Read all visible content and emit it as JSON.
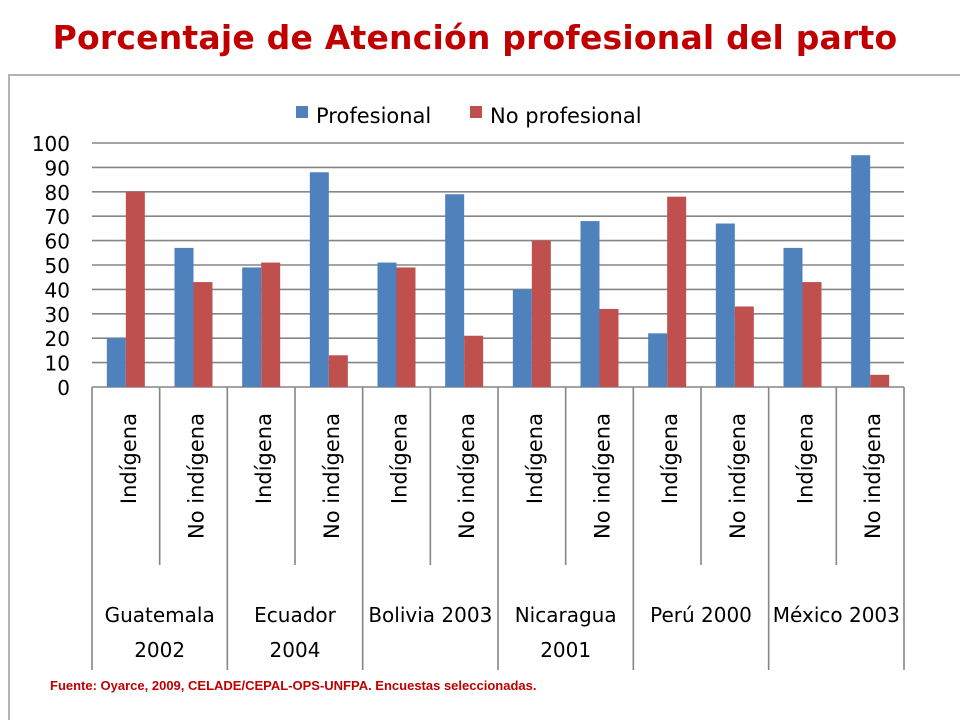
{
  "title": "Porcentaje de Atención profesional del parto",
  "footnote": "Fuente: Oyarce, 2009, CELADE/CEPAL-OPS-UNFPA. Encuestas seleccionadas.",
  "colors": {
    "title": "#c00000",
    "profesional": "#4f81bd",
    "no_profesional": "#c0504d",
    "grid": "#868686"
  },
  "chart_data": {
    "type": "bar",
    "legend_position": "top",
    "grid": true,
    "ylim": [
      0,
      100
    ],
    "yticks": [
      "0",
      "10",
      "20",
      "30",
      "40",
      "50",
      "60",
      "70",
      "80",
      "90",
      "100"
    ],
    "categories": [
      "Indígena",
      "No indígena",
      "Indígena",
      "No indígena",
      "Indígena",
      "No indígena",
      "Indígena",
      "No indígena",
      "Indígena",
      "No indígena",
      "Indígena",
      "No indígena"
    ],
    "groups": [
      {
        "label": [
          "Guatemala",
          "2002"
        ]
      },
      {
        "label": [
          "Ecuador",
          "2004"
        ]
      },
      {
        "label": [
          "Bolivia 2003"
        ]
      },
      {
        "label": [
          "Nicaragua",
          "2001"
        ]
      },
      {
        "label": [
          "Perú 2000"
        ]
      },
      {
        "label": [
          "México 2003"
        ]
      }
    ],
    "series": [
      {
        "name": "Profesional",
        "values": [
          20,
          57,
          49,
          88,
          51,
          79,
          40,
          68,
          22,
          67,
          57,
          95
        ]
      },
      {
        "name": "No profesional",
        "values": [
          80,
          43,
          51,
          13,
          49,
          21,
          60,
          32,
          78,
          33,
          43,
          5
        ]
      }
    ]
  }
}
